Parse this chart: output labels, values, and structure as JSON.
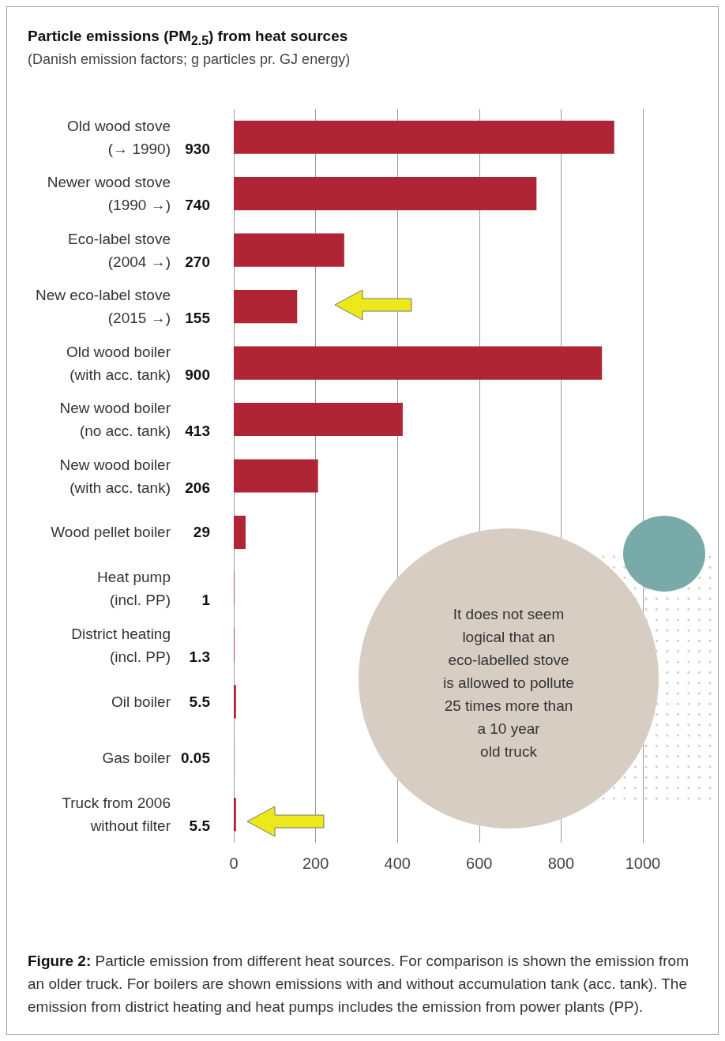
{
  "chart_data": {
    "type": "bar",
    "orientation": "horizontal",
    "title": "Particle emissions (PM$_{2.5}$) from heat sources",
    "subtitle": "(Danish emission factors; g particles pr. GJ energy)",
    "categories": [
      "Old wood stove\n(→ 1990)",
      "Newer wood stove\n(1990 →)",
      "Eco-label stove\n(2004 →)",
      "New eco-label stove\n(2015 →)",
      "Old wood boiler\n(with acc. tank)",
      "New wood boiler\n(no acc. tank)",
      "New wood boiler\n(with acc. tank)",
      "Wood pellet boiler",
      "Heat pump\n(incl. PP)",
      "District heating\n(incl. PP)",
      "Oil boiler",
      "Gas boiler",
      "Truck from 2006\nwithout filter"
    ],
    "values": [
      930,
      740,
      270,
      155,
      900,
      413,
      206,
      29,
      1,
      1.3,
      5.5,
      0.05,
      5.5
    ],
    "color": "#b02535",
    "data_labels": true,
    "xlim": [
      0,
      1000
    ],
    "xticks": [
      0,
      200,
      400,
      600,
      800,
      1000
    ],
    "grid": "x",
    "annotations": [
      "It does not seem\nlogical that an\neco-labelled stove\nis allowed to pollute\n25 times more than\na 10 year\nold truck",
      "Figure 2: Particle emission from different heat sources. For comparison is shown the emission from an older truck. For boilers are shown emissions with and without accumulation tank (acc. tank). The emission from district heating and heat pumps includes the emission from power plants (PP)."
    ]
  }
}
